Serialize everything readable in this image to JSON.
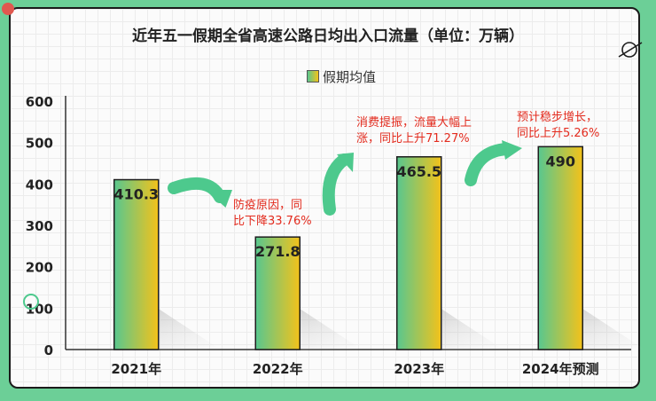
{
  "chart_data": {
    "type": "bar",
    "title": "近年五一假期全省高速公路日均出入口流量（单位：万辆）",
    "categories": [
      "2021年",
      "2022年",
      "2023年",
      "2024年预测"
    ],
    "series": [
      {
        "name": "假期均值",
        "values": [
          410.3,
          271.8,
          465.5,
          490
        ]
      }
    ],
    "data_labels": [
      "410.3",
      "271.8",
      "465.5",
      "490"
    ],
    "ylim": [
      0,
      600
    ],
    "yticks": [
      "0",
      "100",
      "200",
      "300",
      "400",
      "500",
      "600"
    ],
    "xlabel": "",
    "ylabel": "",
    "grid": false,
    "legend_position": "top",
    "bar_gradient": [
      "#58c78f",
      "#f4c21a"
    ],
    "annotations": [
      [
        "防疫原因，同",
        "比下降33.76%"
      ],
      [
        "消费提振，流量大幅上",
        "涨，同比上升71.27%"
      ],
      [
        "预计稳步增长，",
        "同比上升5.26%"
      ]
    ],
    "colors": {
      "background": "#6ccf97",
      "annotation": "#e32b1e",
      "arrow": "#4dc98d"
    }
  }
}
